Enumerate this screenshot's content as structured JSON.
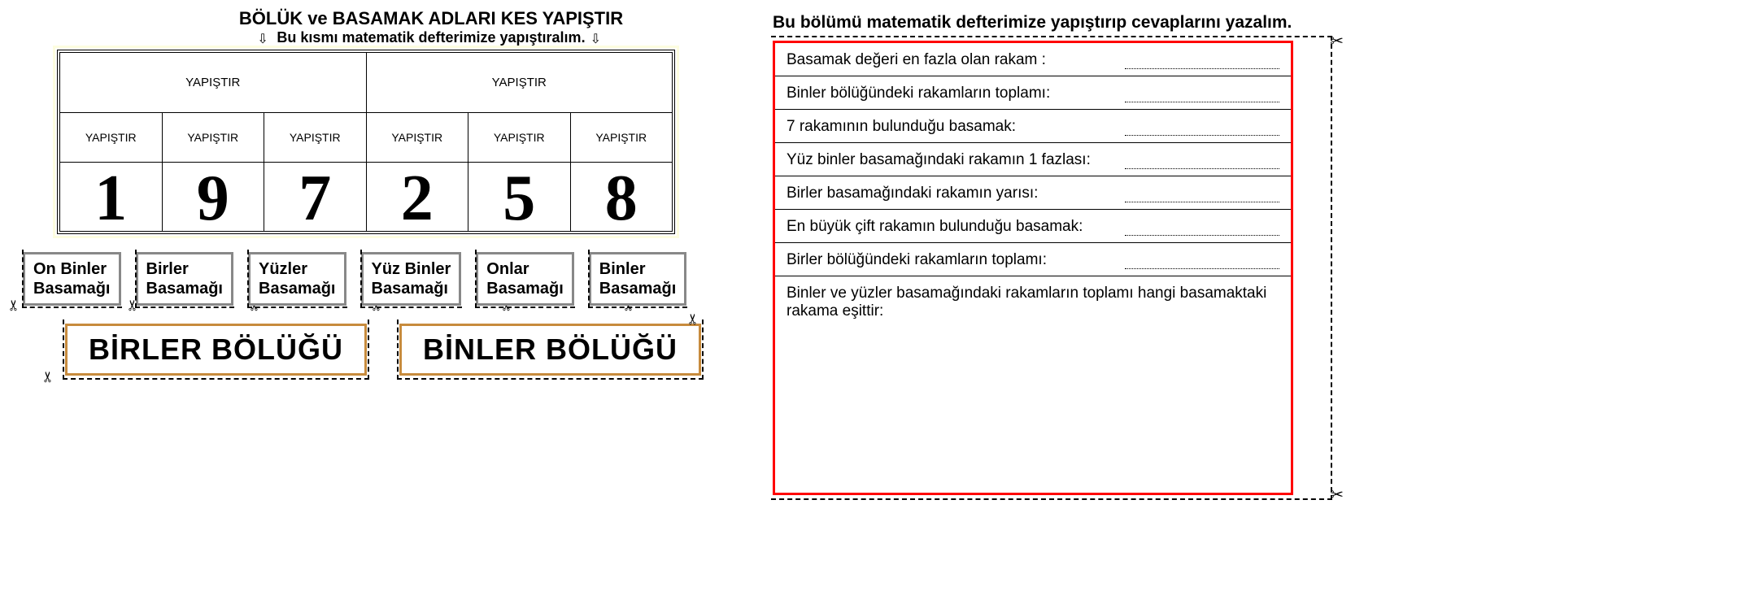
{
  "titles": {
    "main": "BÖLÜK ve BASAMAK ADLARI KES YAPIŞTIR",
    "sub": "Bu kısmı matematik defterimize yapıştıralım.",
    "right": "Bu bölümü matematik defterimize yapıştırıp cevaplarını yazalım."
  },
  "placeholders": {
    "paste": "YAPIŞTIR"
  },
  "digits": [
    "1",
    "9",
    "7",
    "2",
    "5",
    "8"
  ],
  "small_boxes": [
    "On Binler Basamağı",
    "Birler Basamağı",
    "Yüzler Basamağı",
    "Yüz Binler Basamağı",
    "Onlar Basamağı",
    "Binler Basamağı"
  ],
  "big_boxes": [
    "BİRLER BÖLÜĞÜ",
    "BİNLER BÖLÜĞÜ"
  ],
  "questions": [
    "Basamak değeri en fazla olan rakam :",
    "Binler bölüğündeki rakamların toplamı:",
    "7 rakamının bulunduğu basamak:",
    "Yüz binler basamağındaki rakamın 1 fazlası:",
    "Birler basamağındaki rakamın yarısı:",
    "En büyük çift rakamın bulunduğu basamak:",
    "Birler bölüğündeki rakamların toplamı:",
    "Binler ve yüzler basamağındaki rakamların toplamı hangi basamaktaki rakama eşittir:"
  ],
  "colors": {
    "red_border": "#ff0000",
    "grey_border": "#888888",
    "orange_border": "#c78b3d",
    "table_bg": "#fdfde0"
  },
  "icons": {
    "scissor": "✂",
    "arrow_down": "⇩"
  }
}
